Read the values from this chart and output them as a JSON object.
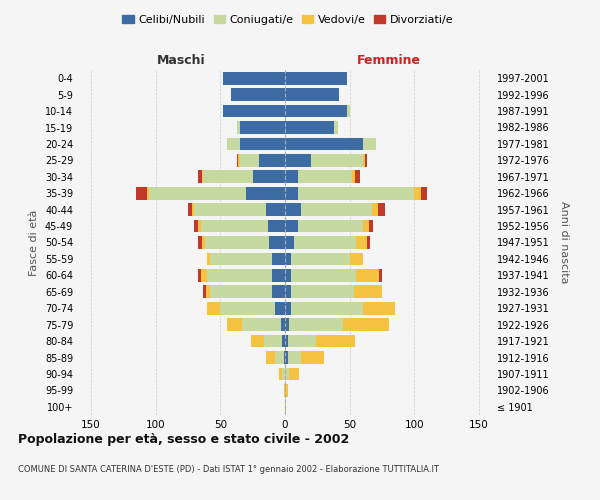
{
  "age_groups": [
    "100+",
    "95-99",
    "90-94",
    "85-89",
    "80-84",
    "75-79",
    "70-74",
    "65-69",
    "60-64",
    "55-59",
    "50-54",
    "45-49",
    "40-44",
    "35-39",
    "30-34",
    "25-29",
    "20-24",
    "15-19",
    "10-14",
    "5-9",
    "0-4"
  ],
  "birth_years": [
    "≤ 1901",
    "1902-1906",
    "1907-1911",
    "1912-1916",
    "1917-1921",
    "1922-1926",
    "1927-1931",
    "1932-1936",
    "1937-1941",
    "1942-1946",
    "1947-1951",
    "1952-1956",
    "1957-1961",
    "1962-1966",
    "1967-1971",
    "1972-1976",
    "1977-1981",
    "1982-1986",
    "1987-1991",
    "1992-1996",
    "1997-2001"
  ],
  "colors": {
    "celibi": "#3d6ca5",
    "coniugati": "#c5d9a0",
    "vedovi": "#f5c242",
    "divorziati": "#c0392b"
  },
  "maschi": {
    "celibi": [
      0,
      0,
      0,
      1,
      2,
      3,
      8,
      10,
      10,
      10,
      12,
      13,
      15,
      30,
      25,
      20,
      35,
      35,
      48,
      42,
      48
    ],
    "coniugati": [
      0,
      0,
      2,
      7,
      14,
      30,
      42,
      48,
      50,
      48,
      50,
      52,
      55,
      75,
      38,
      15,
      10,
      2,
      0,
      0,
      0
    ],
    "vedovi": [
      0,
      1,
      3,
      7,
      10,
      12,
      10,
      3,
      5,
      2,
      2,
      2,
      2,
      2,
      1,
      1,
      0,
      0,
      0,
      0,
      0
    ],
    "divorziati": [
      0,
      0,
      0,
      0,
      0,
      0,
      0,
      2,
      2,
      0,
      3,
      3,
      3,
      8,
      3,
      1,
      0,
      0,
      0,
      0,
      0
    ]
  },
  "femmine": {
    "celibi": [
      0,
      0,
      0,
      2,
      2,
      3,
      5,
      5,
      5,
      5,
      7,
      10,
      12,
      10,
      10,
      20,
      60,
      38,
      48,
      42,
      48
    ],
    "coniugati": [
      0,
      0,
      3,
      10,
      22,
      42,
      55,
      48,
      50,
      45,
      48,
      50,
      55,
      90,
      42,
      40,
      10,
      3,
      2,
      0,
      0
    ],
    "vedovi": [
      1,
      2,
      8,
      18,
      30,
      35,
      25,
      22,
      18,
      10,
      8,
      5,
      5,
      5,
      2,
      2,
      0,
      0,
      0,
      0,
      0
    ],
    "divorziati": [
      0,
      0,
      0,
      0,
      0,
      0,
      0,
      0,
      2,
      0,
      3,
      3,
      5,
      5,
      4,
      1,
      0,
      0,
      0,
      0,
      0
    ]
  },
  "title": "Popolazione per età, sesso e stato civile - 2002",
  "subtitle": "COMUNE DI SANTA CATERINA D'ESTE (PD) - Dati ISTAT 1° gennaio 2002 - Elaborazione TUTTITALIA.IT",
  "xlabel_left": "Maschi",
  "xlabel_right": "Femmine",
  "ylabel_left": "Fasce di età",
  "ylabel_right": "Anni di nascita",
  "xlim": 160,
  "legend_labels": [
    "Celibi/Nubili",
    "Coniugati/e",
    "Vedovi/e",
    "Divorziati/e"
  ],
  "bg_color": "#f5f5f5",
  "grid_color": "#cccccc"
}
